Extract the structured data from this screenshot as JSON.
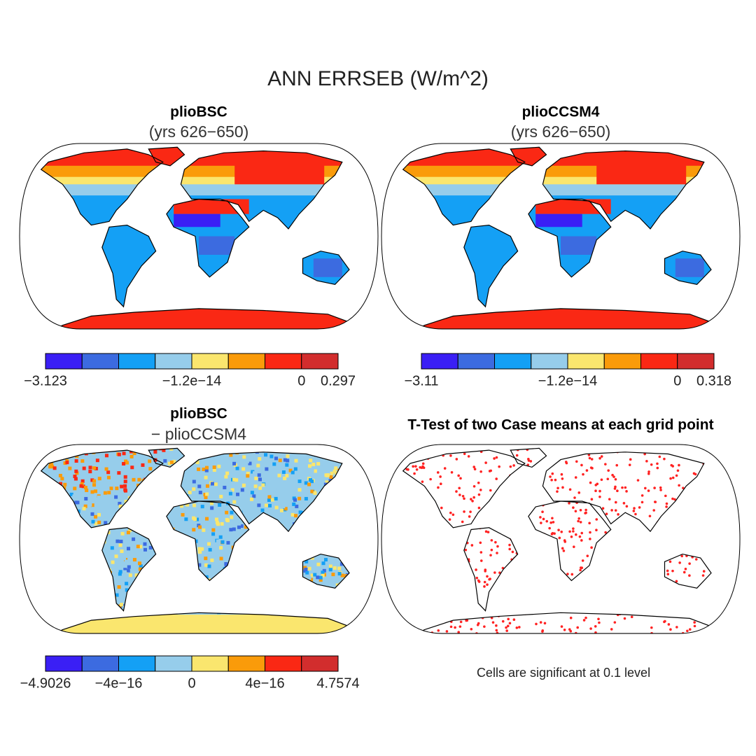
{
  "title": "ANN ERRSEB (W/m^2)",
  "panels": [
    {
      "title": "plioBSC",
      "subtitle": "(yrs 626−650)",
      "colorbar": {
        "colors": [
          "#3a1ff5",
          "#3c6be0",
          "#14a0f5",
          "#96cdeb",
          "#fae66e",
          "#fa9b0a",
          "#fa2814",
          "#d22d2d"
        ],
        "labels": [
          "−3.123",
          null,
          null,
          null,
          "−1.2e−14",
          null,
          null,
          "0",
          "0.297"
        ]
      }
    },
    {
      "title": "plioCCSM4",
      "subtitle": "(yrs 626−650)",
      "colorbar": {
        "colors": [
          "#3a1ff5",
          "#3c6be0",
          "#14a0f5",
          "#96cdeb",
          "#fae66e",
          "#fa9b0a",
          "#fa2814",
          "#d22d2d"
        ],
        "labels": [
          "−3.11",
          null,
          null,
          null,
          "−1.2e−14",
          null,
          null,
          "0",
          "0.318"
        ]
      }
    },
    {
      "title": "plioBSC",
      "subtitle": "− plioCCSM4",
      "colorbar": {
        "colors": [
          "#3a1ff5",
          "#3c6be0",
          "#14a0f5",
          "#96cdeb",
          "#fae66e",
          "#fa9b0a",
          "#fa2814",
          "#d22d2d"
        ],
        "labels": [
          "−4.9026",
          null,
          "−4e−16",
          null,
          "0",
          null,
          "4e−16",
          null,
          "4.7574"
        ]
      }
    },
    {
      "title": "T-Test of two Case means at each grid point",
      "note": "Cells are significant at 0.1 level"
    }
  ]
}
